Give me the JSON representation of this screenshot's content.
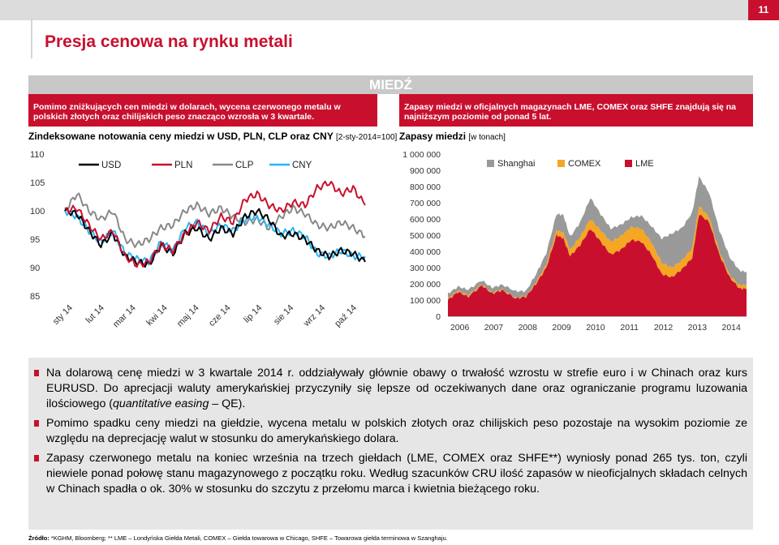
{
  "page": {
    "number": "11",
    "title": "Presja cenowa na rynku metali",
    "banner": "MIEDŹ"
  },
  "left_panel": {
    "info": "Pomimo zniżkujących cen miedzi w dolarach, wycena czerwonego metalu w polskich złotych oraz chilijskich peso znacząco wzrosła w 3 kwartale.",
    "chart_title": "Zindeksowane notowania ceny miedzi w USD, PLN, CLP oraz CNY",
    "chart_sub": "[2-sty-2014=100]"
  },
  "right_panel": {
    "info": "Zapasy miedzi w oficjalnych magazynach LME, COMEX oraz SHFE znajdują się na najniższym poziomie od ponad 5 lat.",
    "chart_title": "Zapasy miedzi",
    "chart_sub": "[w tonach]"
  },
  "chart_data": [
    {
      "type": "line",
      "title": "Zindeksowane notowania ceny miedzi w USD, PLN, CLP oraz CNY",
      "ylim": [
        85,
        110
      ],
      "yticks": [
        "110",
        "105",
        "100",
        "95",
        "90",
        "85"
      ],
      "xticks": [
        "sty 14",
        "lut 14",
        "mar 14",
        "kwi 14",
        "maj 14",
        "cze 14",
        "lip 14",
        "sie 14",
        "wrz 14",
        "paź 14"
      ],
      "legend_position": "top",
      "series": [
        {
          "name": "USD",
          "color": "#000000",
          "values": [
            100,
            99.5,
            96.5,
            94,
            96,
            92,
            91,
            90.5,
            94,
            92.5,
            96,
            97,
            95,
            97,
            96,
            99,
            100,
            98.5,
            95.5,
            96,
            95,
            93,
            92,
            93,
            92.5,
            91
          ]
        },
        {
          "name": "PLN",
          "color": "#c8102e",
          "values": [
            100,
            100.5,
            97.5,
            95,
            96.5,
            92,
            90.5,
            91,
            94,
            93,
            96,
            98,
            96.5,
            99,
            98,
            102,
            103,
            101,
            100,
            101.5,
            101,
            104,
            105,
            103,
            104,
            101
          ]
        },
        {
          "name": "CLP",
          "color": "#888888",
          "values": [
            100,
            103,
            100,
            98.5,
            100,
            95,
            94,
            95,
            97,
            97.5,
            100,
            101,
            99.5,
            100.5,
            99,
            98,
            98.5,
            97,
            99,
            100.5,
            99.5,
            97.5,
            97,
            98,
            97,
            95.5
          ]
        },
        {
          "name": "CNY",
          "color": "#29b6f6",
          "values": [
            100,
            99,
            96.5,
            94.5,
            96.5,
            92.5,
            91.5,
            91,
            94.5,
            93,
            97,
            98,
            96,
            97.5,
            96.5,
            98.5,
            99,
            97.5,
            96,
            96.5,
            95.5,
            92.5,
            92,
            93,
            92,
            92
          ]
        }
      ]
    },
    {
      "type": "area",
      "title": "Zapasy miedzi",
      "ylim": [
        0,
        1000000
      ],
      "yticks": [
        "1 000 000",
        "900 000",
        "800 000",
        "700 000",
        "600 000",
        "500 000",
        "400 000",
        "300 000",
        "200 000",
        "100 000",
        "0"
      ],
      "categories": [
        "2006",
        "2007",
        "2008",
        "2009",
        "2010",
        "2011",
        "2012",
        "2013",
        "2014"
      ],
      "legend_position": "top",
      "x": [
        2006.0,
        2006.3,
        2006.6,
        2007.0,
        2007.3,
        2007.6,
        2008.0,
        2008.3,
        2008.6,
        2008.9,
        2009.2,
        2009.4,
        2009.6,
        2009.9,
        2010.2,
        2010.5,
        2010.8,
        2011.1,
        2011.4,
        2011.7,
        2012.0,
        2012.3,
        2012.6,
        2012.9,
        2013.2,
        2013.4,
        2013.7,
        2014.0,
        2014.3,
        2014.6,
        2014.8
      ],
      "series": [
        {
          "name": "Shanghai",
          "color": "#999999",
          "values": [
            30000,
            25000,
            35000,
            25000,
            30000,
            30000,
            40000,
            30000,
            50000,
            70000,
            100000,
            110000,
            80000,
            90000,
            130000,
            100000,
            80000,
            70000,
            60000,
            80000,
            100000,
            150000,
            210000,
            200000,
            220000,
            180000,
            150000,
            130000,
            110000,
            90000,
            80000
          ]
        },
        {
          "name": "COMEX",
          "color": "#f5a623",
          "values": [
            10000,
            8000,
            9000,
            7000,
            6000,
            5000,
            4000,
            5000,
            10000,
            20000,
            30000,
            35000,
            40000,
            50000,
            60000,
            70000,
            80000,
            85000,
            80000,
            80000,
            75000,
            70000,
            60000,
            55000,
            60000,
            50000,
            30000,
            20000,
            15000,
            20000,
            25000
          ]
        },
        {
          "name": "LME",
          "color": "#c8102e",
          "values": [
            100000,
            150000,
            120000,
            190000,
            140000,
            160000,
            110000,
            120000,
            200000,
            300000,
            500000,
            480000,
            370000,
            440000,
            540000,
            460000,
            380000,
            410000,
            470000,
            460000,
            380000,
            260000,
            240000,
            290000,
            360000,
            630000,
            580000,
            380000,
            240000,
            170000,
            170000
          ]
        }
      ]
    }
  ],
  "bullets": [
    {
      "pre": "Na dolarową cenę miedzi w 3 kwartale 2014 r. oddziaływały głównie obawy o trwałość wzrostu w strefie euro i w Chinach oraz kurs EURUSD. Do aprecjacji waluty amerykańskiej przyczyniły się lepsze od oczekiwanych dane oraz ograniczanie programu luzowania ilościowego (",
      "em": "quantitative easing",
      "post": " – QE)."
    },
    {
      "pre": "Pomimo spadku ceny miedzi na giełdzie, wycena metalu w polskich złotych oraz chilijskich peso pozostaje na wysokim poziomie ze względu na deprecjację walut w stosunku do amerykańskiego dolara.",
      "em": "",
      "post": ""
    },
    {
      "pre": "Zapasy czerwonego metalu na koniec września na trzech giełdach (LME, COMEX oraz SHFE**) wyniosły ponad 265 tys. ton, czyli niewiele ponad połowę stanu magazynowego z początku roku. Według szacunków CRU ilość zapasów w nieoficjalnych składach celnych w Chinach spadła o ok. 30% w stosunku do szczytu z przełomu marca i kwietnia bieżącego roku.",
      "em": "",
      "post": ""
    }
  ],
  "source": {
    "label": "Źródło:",
    "text": " *KGHM, Bloomberg; ** LME – Londyńska Giełda Metali, COMEX – Giełda towarowa w Chicago, SHFE – Towarowa giełda terminowa w Szanghaju."
  }
}
